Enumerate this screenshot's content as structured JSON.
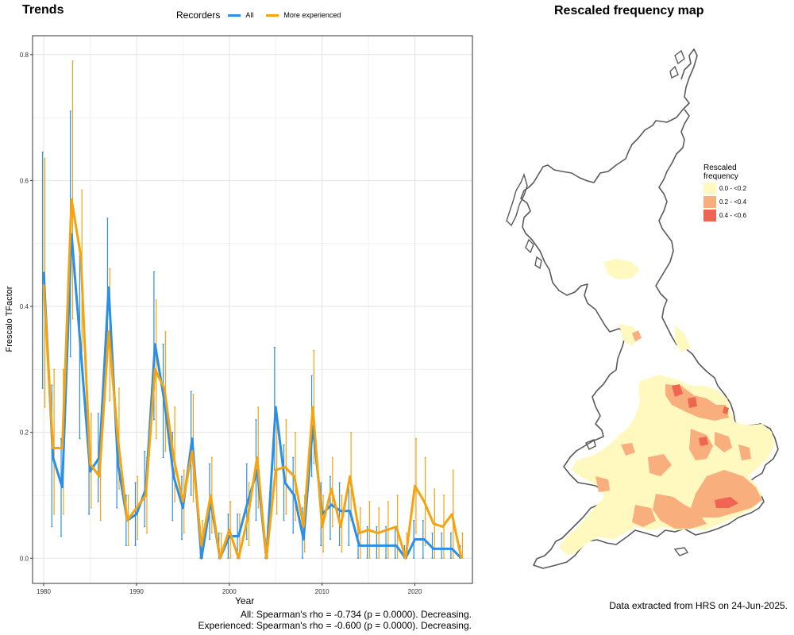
{
  "trends": {
    "title": "Trends",
    "legend": {
      "title": "Recorders",
      "items": [
        {
          "label": "All",
          "color": "#2b8fe6"
        },
        {
          "label": "More experienced",
          "color": "#f5a30f"
        }
      ]
    },
    "stats": {
      "all": "All: Spearman's rho = -0.734 (p = 0.0000). Decreasing.",
      "experienced": "Experienced: Spearman's rho = -0.600 (p = 0.0000). Decreasing."
    }
  },
  "chart_data": {
    "type": "line",
    "xlabel": "Year",
    "ylabel": "Frescalo TFactor",
    "xlim": [
      1978.8,
      2026.2
    ],
    "ylim": [
      -0.04,
      0.83
    ],
    "xticks": [
      1980,
      1990,
      2000,
      2010,
      2020
    ],
    "yticks": [
      0.0,
      0.2,
      0.4,
      0.6,
      0.8
    ],
    "grid": true,
    "legend_position": "top",
    "x": [
      1980,
      1981,
      1982,
      1983,
      1984,
      1985,
      1986,
      1987,
      1988,
      1989,
      1990,
      1991,
      1992,
      1993,
      1994,
      1995,
      1996,
      1997,
      1998,
      1999,
      2000,
      2001,
      2002,
      2003,
      2004,
      2005,
      2006,
      2007,
      2008,
      2009,
      2010,
      2011,
      2012,
      2013,
      2014,
      2015,
      2016,
      2017,
      2018,
      2019,
      2020,
      2021,
      2022,
      2023,
      2024,
      2025
    ],
    "series": [
      {
        "name": "All",
        "color": "#2b8fe6",
        "values": [
          0.455,
          0.16,
          0.113,
          0.515,
          0.33,
          0.138,
          0.16,
          0.43,
          0.15,
          0.06,
          0.07,
          0.11,
          0.34,
          0.25,
          0.13,
          0.08,
          0.19,
          0.0,
          0.09,
          0.0,
          0.035,
          0.035,
          0.09,
          0.14,
          0.0,
          0.24,
          0.12,
          0.1,
          0.03,
          0.21,
          0.07,
          0.085,
          0.075,
          0.075,
          0.02,
          0.02,
          0.02,
          0.02,
          0.02,
          0.0,
          0.03,
          0.03,
          0.015,
          0.015,
          0.015,
          0.0
        ],
        "ci_low": [
          0.27,
          0.05,
          0.035,
          0.32,
          0.19,
          0.07,
          0.09,
          0.32,
          0.08,
          0.02,
          0.02,
          0.05,
          0.22,
          0.16,
          0.06,
          0.03,
          0.1,
          0.0,
          0.03,
          0.0,
          0.0,
          0.0,
          0.03,
          0.06,
          0.0,
          0.14,
          0.06,
          0.04,
          0.0,
          0.13,
          0.02,
          0.03,
          0.02,
          0.02,
          0.0,
          0.0,
          0.0,
          0.0,
          0.0,
          0.0,
          0.0,
          0.0,
          0.0,
          0.0,
          0.0,
          0.0
        ],
        "ci_high": [
          0.645,
          0.275,
          0.19,
          0.71,
          0.48,
          0.205,
          0.23,
          0.54,
          0.22,
          0.1,
          0.12,
          0.17,
          0.455,
          0.34,
          0.2,
          0.13,
          0.265,
          0.02,
          0.15,
          0.04,
          0.07,
          0.07,
          0.15,
          0.22,
          0.03,
          0.335,
          0.18,
          0.16,
          0.08,
          0.29,
          0.12,
          0.13,
          0.12,
          0.12,
          0.05,
          0.05,
          0.05,
          0.05,
          0.05,
          0.02,
          0.06,
          0.06,
          0.04,
          0.04,
          0.04,
          0.02
        ]
      },
      {
        "name": "More experienced",
        "color": "#f5a30f",
        "values": [
          0.435,
          0.175,
          0.175,
          0.57,
          0.48,
          0.15,
          0.13,
          0.36,
          0.19,
          0.06,
          0.08,
          0.1,
          0.3,
          0.27,
          0.16,
          0.09,
          0.17,
          0.02,
          0.1,
          0.0,
          0.045,
          0.0,
          0.065,
          0.16,
          0.0,
          0.14,
          0.145,
          0.13,
          0.05,
          0.24,
          0.05,
          0.11,
          0.05,
          0.13,
          0.04,
          0.045,
          0.04,
          0.045,
          0.05,
          0.0,
          0.115,
          0.09,
          0.055,
          0.05,
          0.07,
          0.0
        ],
        "ci_low": [
          0.24,
          0.07,
          0.07,
          0.38,
          0.33,
          0.08,
          0.06,
          0.25,
          0.11,
          0.02,
          0.03,
          0.04,
          0.19,
          0.17,
          0.09,
          0.04,
          0.09,
          0.0,
          0.04,
          0.0,
          0.0,
          0.0,
          0.02,
          0.08,
          0.0,
          0.07,
          0.07,
          0.06,
          0.01,
          0.15,
          0.01,
          0.05,
          0.01,
          0.06,
          0.0,
          0.0,
          0.0,
          0.0,
          0.0,
          0.0,
          0.04,
          0.02,
          0.0,
          0.0,
          0.0,
          0.0
        ],
        "ci_high": [
          0.635,
          0.3,
          0.3,
          0.79,
          0.585,
          0.23,
          0.2,
          0.46,
          0.27,
          0.1,
          0.13,
          0.16,
          0.41,
          0.36,
          0.24,
          0.14,
          0.26,
          0.06,
          0.16,
          0.04,
          0.09,
          0.07,
          0.12,
          0.24,
          0.05,
          0.22,
          0.22,
          0.2,
          0.1,
          0.33,
          0.1,
          0.16,
          0.1,
          0.2,
          0.08,
          0.09,
          0.08,
          0.09,
          0.1,
          0.04,
          0.19,
          0.16,
          0.11,
          0.1,
          0.14,
          0.04
        ]
      }
    ]
  },
  "map": {
    "title": "Rescaled frequency map",
    "legend_title": "Rescaled frequency",
    "bins": [
      {
        "label": "0.0 - <0.2",
        "color": "#fff9bf"
      },
      {
        "label": "0.2 - <0.4",
        "color": "#f8ae7d"
      },
      {
        "label": "0.4 - <0.6",
        "color": "#ef6552"
      }
    ],
    "outline_color": "#5a5a5a",
    "footer": "Data extracted from HRS on 24-Jun-2025."
  }
}
